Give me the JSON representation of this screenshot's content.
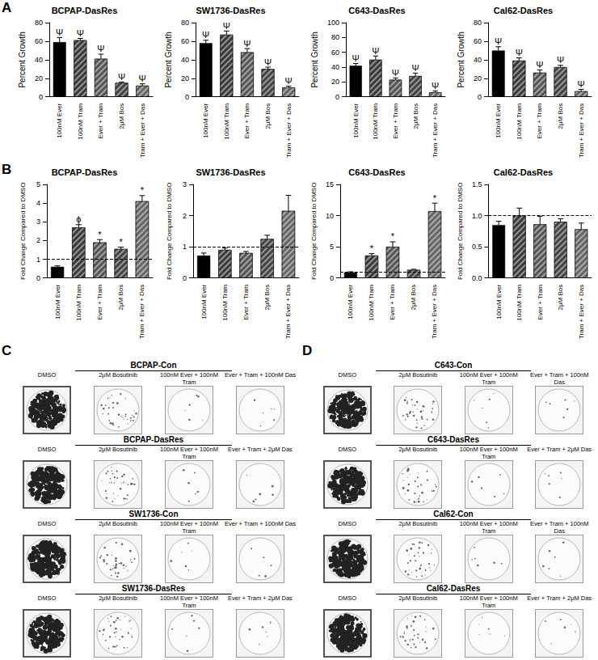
{
  "panel_labels": [
    "A",
    "B",
    "C",
    "D"
  ],
  "chart_data": [
    {
      "type": "bar",
      "title": "BCPAP-DasRes",
      "ylabel": "Percent Growth",
      "categories": [
        "100nM Ever",
        "100nM Tram",
        "Ever + Tram",
        "2μM Bos",
        "Tram + Ever + Das"
      ],
      "values": [
        59,
        61,
        41,
        15,
        12
      ],
      "errors": [
        5,
        2,
        5,
        1,
        2
      ],
      "annotations": [
        "Ψ",
        "Ψ",
        "Ψ",
        "Ψ",
        "Ψ"
      ],
      "colors": [
        "#000000",
        "#3a3a3a",
        "#555555",
        "#444444",
        "#666666"
      ],
      "ylim": [
        0,
        80
      ],
      "yticks": [
        0,
        20,
        40,
        60,
        80
      ]
    },
    {
      "type": "bar",
      "title": "SW1736-DasRes",
      "ylabel": "Percent Growth",
      "categories": [
        "100nM Ever",
        "100nM Tram",
        "Ever + Tram",
        "2μM Bos",
        "Tram + Ever + Das"
      ],
      "values": [
        58,
        67,
        48,
        30,
        10
      ],
      "errors": [
        3,
        4,
        4,
        2,
        1.5
      ],
      "annotations": [
        "Ψ",
        "Ψ",
        "Ψ",
        "Ψ",
        "Ψ"
      ],
      "colors": [
        "#000000",
        "#3a3a3a",
        "#555555",
        "#444444",
        "#666666"
      ],
      "ylim": [
        0,
        80
      ],
      "yticks": [
        0,
        20,
        40,
        60,
        80
      ]
    },
    {
      "type": "bar",
      "title": "C643-DasRes",
      "ylabel": "Percent Growth",
      "categories": [
        "100nM Ever",
        "100nM Tram",
        "Ever + Tram",
        "2μM Bos",
        "Tram + Ever + Das"
      ],
      "values": [
        42,
        50,
        23,
        28,
        6
      ],
      "errors": [
        3,
        5,
        2.5,
        4,
        2
      ],
      "annotations": [
        "Ψ",
        "Ψ",
        "Ψ",
        "Ψ",
        "Ψ"
      ],
      "colors": [
        "#000000",
        "#3a3a3a",
        "#555555",
        "#444444",
        "#666666"
      ],
      "ylim": [
        0,
        100
      ],
      "yticks": [
        0,
        20,
        40,
        60,
        80,
        100
      ]
    },
    {
      "type": "bar",
      "title": "Cal62-DasRes",
      "ylabel": "Percent Growth",
      "categories": [
        "100nM Ever",
        "100nM Tram",
        "Ever + Tram",
        "2μM Bos",
        "Tram + Ever + Das"
      ],
      "values": [
        50,
        39,
        26,
        32,
        6
      ],
      "errors": [
        4,
        3,
        3,
        2,
        2
      ],
      "annotations": [
        "Ψ",
        "Ψ",
        "Ψ",
        "Ψ",
        "Ψ"
      ],
      "colors": [
        "#000000",
        "#3a3a3a",
        "#555555",
        "#444444",
        "#666666"
      ],
      "ylim": [
        0,
        80
      ],
      "yticks": [
        0,
        20,
        40,
        60,
        80
      ]
    },
    {
      "type": "bar",
      "title": "BCPAP-DasRes",
      "ylabel": "Fold Change Compared to DMSO",
      "categories": [
        "100nM Ever",
        "100nM Tram",
        "Ever + Tram",
        "2μM Bos",
        "Tram + Ever + Das"
      ],
      "values": [
        0.6,
        2.7,
        1.9,
        1.55,
        4.1
      ],
      "errors": [
        0.05,
        0.15,
        0.15,
        0.1,
        0.3
      ],
      "annotations": [
        null,
        "ϕ",
        "*",
        "*",
        "*"
      ],
      "colors": [
        "#000000",
        "#3a3a3a",
        "#555555",
        "#444444",
        "#666666"
      ],
      "reference_line": 1,
      "ylim": [
        0,
        5
      ],
      "yticks": [
        0,
        1,
        2,
        3,
        4,
        5
      ]
    },
    {
      "type": "bar",
      "title": "SW1736-DasRes",
      "ylabel": "Fold Change Compared to DMSO",
      "categories": [
        "100nM Ever",
        "100nM Tram",
        "Ever + Tram",
        "2μM Bos",
        "Tram + Ever + Das"
      ],
      "values": [
        0.72,
        0.9,
        0.8,
        1.25,
        2.15
      ],
      "errors": [
        0.08,
        0.06,
        0.05,
        0.12,
        0.5
      ],
      "annotations": [
        null,
        null,
        null,
        null,
        null
      ],
      "colors": [
        "#000000",
        "#3a3a3a",
        "#555555",
        "#444444",
        "#666666"
      ],
      "reference_line": 1,
      "ylim": [
        0,
        3
      ],
      "yticks": [
        0,
        1,
        2,
        3
      ]
    },
    {
      "type": "bar",
      "title": "C643-DasRes",
      "ylabel": "Fold Change Compared to DMSO",
      "categories": [
        "100nM Ever",
        "100nM Tram",
        "Ever + Tram",
        "2μM Bos",
        "Tram + Ever + Das"
      ],
      "values": [
        0.9,
        3.6,
        5.0,
        1.3,
        10.7
      ],
      "errors": [
        0.1,
        0.3,
        0.8,
        0.1,
        1.3
      ],
      "annotations": [
        null,
        "*",
        "*",
        null,
        "*"
      ],
      "colors": [
        "#000000",
        "#3a3a3a",
        "#555555",
        "#444444",
        "#666666"
      ],
      "reference_line": 1,
      "ylim": [
        0,
        15
      ],
      "yticks": [
        0,
        5,
        10,
        15
      ]
    },
    {
      "type": "bar",
      "title": "Cal62-DasRes",
      "ylabel": "Fold Change Compared to DMSO",
      "categories": [
        "100nM Ever",
        "100nM Tram",
        "Ever + Tram",
        "2μM Bos",
        "Tram + Ever + Das"
      ],
      "values": [
        0.85,
        1.0,
        0.86,
        0.9,
        0.78
      ],
      "errors": [
        0.06,
        0.12,
        0.13,
        0.05,
        0.1
      ],
      "annotations": [
        null,
        null,
        null,
        null,
        null
      ],
      "colors": [
        "#000000",
        "#3a3a3a",
        "#555555",
        "#444444",
        "#666666"
      ],
      "reference_line": 1,
      "ylim": [
        0,
        1.5
      ],
      "yticks": [
        {
          "value": 0,
          "label": "0.0"
        },
        {
          "value": 0.5,
          "label": "0.5"
        },
        {
          "value": 1,
          "label": "1.0"
        },
        {
          "value": 1.5,
          "label": "1.5"
        }
      ]
    }
  ],
  "plates": {
    "C": [
      {
        "title": "BCPAP-Con",
        "columns": [
          "DMSO",
          "2μM Bosutinib",
          "100nM Ever + 100nM Tram",
          "Ever + Tram + 100nM Das"
        ]
      },
      {
        "title": "BCPAP-DasRes",
        "columns": [
          "DMSO",
          "2μM Bosutinib",
          "100nM Ever + 100nM Tram",
          "Ever + Tram + 2μM Das"
        ]
      },
      {
        "title": "SW1736-Con",
        "columns": [
          "DMSO",
          "2μM Bosutinib",
          "100nM Ever + 100nM Tram",
          "Ever + Tram + 100nM Das"
        ]
      },
      {
        "title": "SW1736-DasRes",
        "columns": [
          "DMSO",
          "2μM Bosutinib",
          "100nM Ever + 100nM Tram",
          "Ever + Tram + 2μM Das"
        ]
      }
    ],
    "D": [
      {
        "title": "C643-Con",
        "columns": [
          "DMSO",
          "2μM Bosutinib",
          "100nM Ever + 100nM Tram",
          "Ever + Tram + 100nM Das"
        ]
      },
      {
        "title": "C643-DasRes",
        "columns": [
          "DMSO",
          "2μM Bosutinib",
          "100nM Ever + 100nM Tram",
          "Ever + Tram + 2μM Das"
        ]
      },
      {
        "title": "Cal62-Con",
        "columns": [
          "DMSO",
          "2μM Bosutinib",
          "100nM Ever + 100nM Tram",
          "Ever + Tram + 100nM Das"
        ]
      },
      {
        "title": "Cal62-DasRes",
        "columns": [
          "DMSO",
          "2μM Bosutinib",
          "100nM Ever + 100nM Tram",
          "Ever + Tram + 2μM Das"
        ]
      }
    ]
  }
}
